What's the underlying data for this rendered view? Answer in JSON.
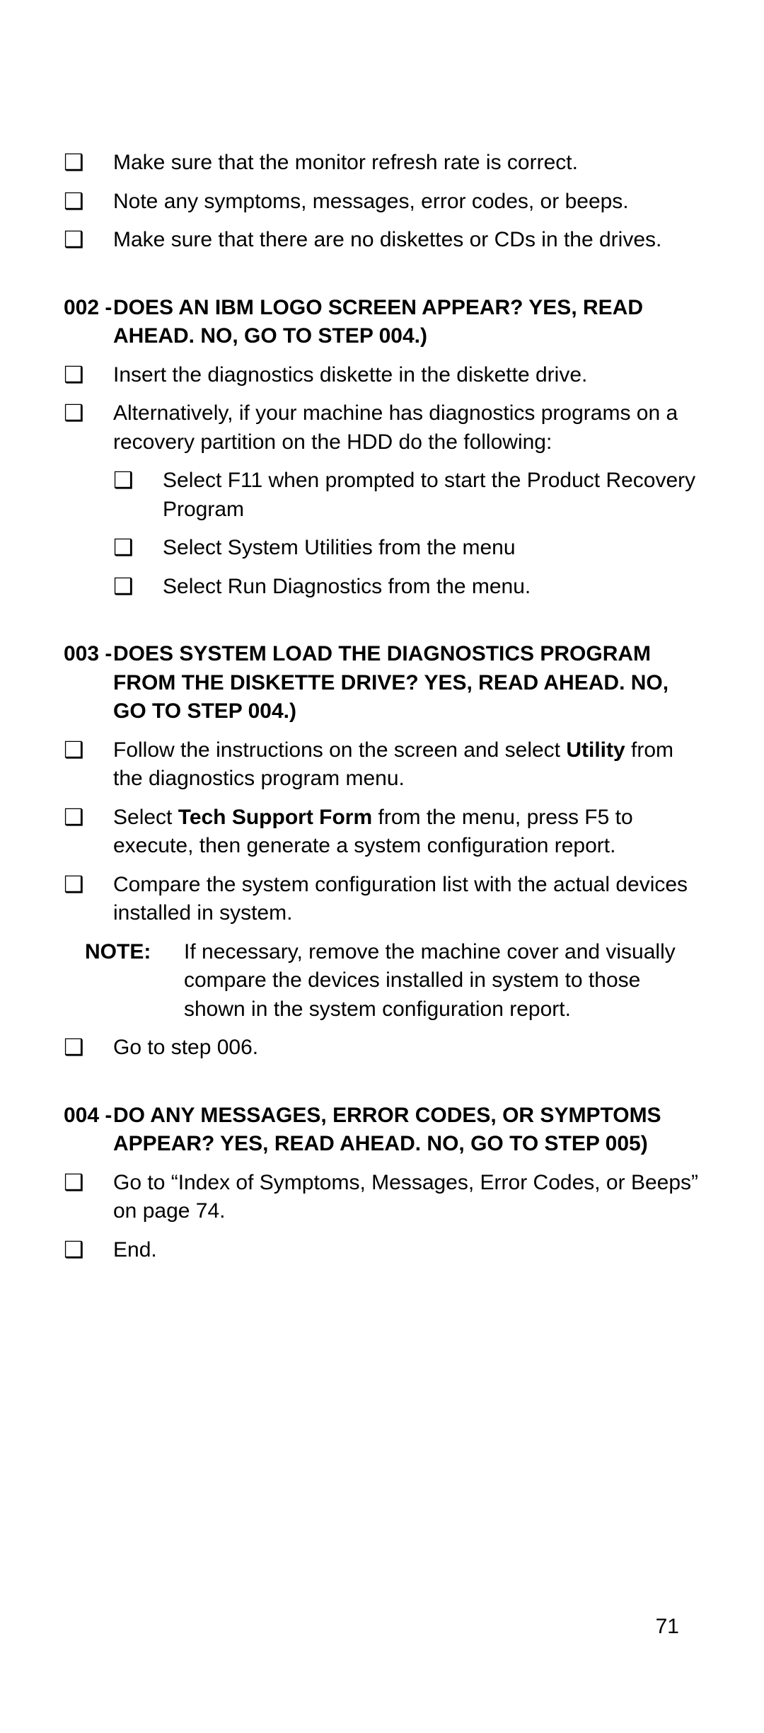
{
  "bulletGlyph": "❑",
  "intro": [
    "Make sure that the monitor refresh rate is correct.",
    "Note any symptoms, messages, error codes, or beeps.",
    "Make sure that there are no diskettes or CDs in the drives."
  ],
  "step002": {
    "num": "002 -",
    "title": "DOES AN IBM LOGO SCREEN APPEAR?  YES, READ AHEAD.  NO, GO TO STEP 004.)",
    "items": [
      "Insert the diagnostics diskette in the diskette drive.",
      "Alternatively, if your machine has diagnostics programs on a recovery partition on the HDD do the following:"
    ],
    "sub": [
      "Select F11 when prompted to start the Product Recovery Program",
      "Select System Utilities from the menu",
      "Select Run Diagnostics from the menu."
    ]
  },
  "step003": {
    "num": "003 -",
    "title": "DOES SYSTEM LOAD THE DIAGNOSTICS PROGRAM FROM THE DISKETTE DRIVE?  YES, READ AHEAD.  NO, GO TO STEP 004.)",
    "item1a": "Follow the instructions on the screen and select ",
    "item1b": "Utility",
    "item1c": " from the diagnostics program menu.",
    "item2a": "Select ",
    "item2b": "Tech Support Form",
    "item2c": " from the menu, press F5 to execute, then generate a system configuration report.",
    "item3": "Compare the system configuration list with the actual devices installed in system.",
    "noteLabel": "NOTE:",
    "noteText": "If necessary, remove the machine cover and visually compare the devices installed in system to those shown in the system configuration report.",
    "item4": "Go to step 006."
  },
  "step004": {
    "num": "004 -",
    "title": "DO ANY MESSAGES, ERROR CODES, OR SYMPTOMS APPEAR?  YES, READ AHEAD.  NO, GO TO STEP 005)",
    "item1": "Go to “Index of Symptoms, Messages, Error Codes, or Beeps” on page 74.",
    "item2": "End."
  },
  "pageNumber": "71"
}
